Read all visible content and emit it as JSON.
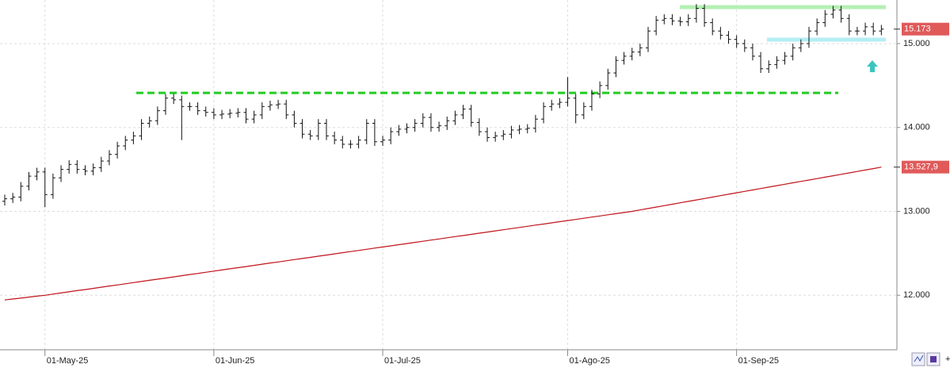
{
  "chart_data": {
    "type": "ohlc",
    "categories": [
      null,
      null,
      null,
      null,
      null,
      "01-May-25",
      null,
      null,
      null,
      null,
      null,
      null,
      null,
      null,
      null,
      null,
      null,
      null,
      null,
      null,
      null,
      null,
      null,
      null,
      null,
      null,
      "01-Jun-25",
      null,
      null,
      null,
      null,
      null,
      null,
      null,
      null,
      null,
      null,
      null,
      null,
      null,
      null,
      null,
      null,
      null,
      null,
      null,
      null,
      "01-Jul-25",
      null,
      null,
      null,
      null,
      null,
      null,
      null,
      null,
      null,
      null,
      null,
      null,
      null,
      null,
      null,
      null,
      null,
      null,
      null,
      null,
      null,
      null,
      "01-Ago-25",
      null,
      null,
      null,
      null,
      null,
      null,
      null,
      null,
      null,
      null,
      null,
      null,
      null,
      null,
      null,
      null,
      null,
      null,
      null,
      null,
      "01-Sep-25",
      null,
      null,
      null,
      null,
      null,
      null,
      null,
      null,
      null,
      null,
      null,
      null,
      null,
      null,
      null,
      null,
      null,
      null
    ],
    "open": [
      13120,
      13150,
      13170,
      13300,
      13420,
      13470,
      13200,
      13400,
      13500,
      13560,
      13500,
      13480,
      13520,
      13600,
      13680,
      13780,
      13850,
      13900,
      14050,
      14080,
      14200,
      14350,
      14330,
      14250,
      14250,
      14200,
      14180,
      14150,
      14160,
      14170,
      14180,
      14100,
      14150,
      14250,
      14270,
      14280,
      14150,
      14050,
      13920,
      13900,
      14050,
      13900,
      13850,
      13800,
      13800,
      13850,
      14050,
      13830,
      13850,
      13950,
      13980,
      14000,
      14050,
      14120,
      14000,
      14020,
      14080,
      14150,
      14220,
      14060,
      13950,
      13880,
      13900,
      13920,
      13970,
      13980,
      13990,
      14100,
      14250,
      14280,
      14300,
      14350,
      14150,
      14250,
      14400,
      14500,
      14650,
      14800,
      14850,
      14900,
      14950,
      15150,
      15280,
      15300,
      15270,
      15260,
      15300,
      15420,
      15250,
      15150,
      15100,
      15050,
      15000,
      14950,
      14850,
      14700,
      14750,
      14800,
      14850,
      14950,
      15000,
      15150,
      15250,
      15350,
      15400,
      15300,
      15150,
      15150,
      15200,
      15150
    ],
    "high": [
      13200,
      13220,
      13350,
      13470,
      13520,
      13520,
      13450,
      13550,
      13610,
      13610,
      13550,
      13570,
      13650,
      13730,
      13830,
      13900,
      13950,
      14100,
      14130,
      14250,
      14400,
      14400,
      14380,
      14300,
      14300,
      14250,
      14230,
      14210,
      14220,
      14230,
      14230,
      14200,
      14300,
      14320,
      14330,
      14330,
      14200,
      14100,
      13970,
      14100,
      14100,
      13950,
      13900,
      13850,
      13900,
      14100,
      14100,
      13900,
      14000,
      14030,
      14050,
      14100,
      14170,
      14170,
      14070,
      14130,
      14200,
      14270,
      14270,
      14110,
      14000,
      13950,
      13970,
      14020,
      14030,
      14040,
      14150,
      14300,
      14330,
      14350,
      14600,
      14400,
      14300,
      14450,
      14550,
      14700,
      14850,
      14900,
      14950,
      15000,
      15200,
      15330,
      15350,
      15350,
      15320,
      15350,
      15470,
      15470,
      15300,
      15200,
      15150,
      15100,
      15050,
      15000,
      14900,
      14800,
      14850,
      14900,
      15000,
      15050,
      15200,
      15300,
      15400,
      15450,
      15450,
      15350,
      15200,
      15250,
      15250,
      15223
    ],
    "low": [
      13070,
      13100,
      13120,
      13250,
      13370,
      13050,
      13150,
      13350,
      13450,
      13450,
      13430,
      13430,
      13470,
      13550,
      13630,
      13730,
      13800,
      13850,
      14000,
      14030,
      14150,
      14280,
      13850,
      14200,
      14150,
      14130,
      14100,
      14100,
      14110,
      14120,
      14050,
      14050,
      14100,
      14200,
      14220,
      14100,
      14000,
      13870,
      13850,
      13850,
      13850,
      13800,
      13750,
      13750,
      13750,
      13800,
      13780,
      13780,
      13800,
      13900,
      13930,
      13950,
      14000,
      13950,
      13950,
      13970,
      14030,
      14100,
      14010,
      13900,
      13830,
      13830,
      13850,
      13870,
      13920,
      13930,
      13940,
      14050,
      14200,
      14230,
      14250,
      14050,
      14100,
      14200,
      14350,
      14450,
      14600,
      14750,
      14800,
      14850,
      14900,
      15100,
      15230,
      15220,
      15210,
      15210,
      15250,
      15200,
      15100,
      15050,
      15000,
      14950,
      14900,
      14800,
      14650,
      14650,
      14700,
      14750,
      14800,
      14900,
      14950,
      15100,
      15200,
      15300,
      15250,
      15100,
      15100,
      15100,
      15100,
      15100
    ],
    "close": [
      13150,
      13170,
      13300,
      13420,
      13470,
      13200,
      13400,
      13500,
      13560,
      13500,
      13480,
      13520,
      13600,
      13680,
      13780,
      13850,
      13900,
      14050,
      14080,
      14200,
      14350,
      14330,
      14250,
      14250,
      14200,
      14180,
      14150,
      14160,
      14170,
      14180,
      14100,
      14150,
      14250,
      14270,
      14280,
      14150,
      14050,
      13920,
      13900,
      14050,
      13900,
      13850,
      13800,
      13800,
      13850,
      14050,
      13830,
      13850,
      13950,
      13980,
      14000,
      14050,
      14120,
      14000,
      14020,
      14080,
      14150,
      14220,
      14060,
      13950,
      13880,
      13900,
      13920,
      13970,
      13980,
      13990,
      14100,
      14250,
      14280,
      14300,
      14350,
      14150,
      14250,
      14400,
      14500,
      14650,
      14800,
      14850,
      14900,
      14950,
      15150,
      15280,
      15300,
      15270,
      15260,
      15300,
      15420,
      15250,
      15150,
      15100,
      15050,
      15000,
      14950,
      14850,
      14700,
      14750,
      14800,
      14850,
      14950,
      15000,
      15150,
      15250,
      15350,
      15400,
      15300,
      15150,
      15150,
      15200,
      15150,
      15173
    ],
    "color": "#111111",
    "moving_average": {
      "color": "#c0141c",
      "values": [
        11944,
        11955,
        11966,
        11978,
        11989,
        12000,
        12014,
        12027,
        12041,
        12055,
        12068,
        12082,
        12096,
        12110,
        12123,
        12137,
        12151,
        12164,
        12178,
        12192,
        12205,
        12219,
        12233,
        12247,
        12260,
        12274,
        12288,
        12301,
        12315,
        12329,
        12342,
        12356,
        12370,
        12384,
        12397,
        12411,
        12425,
        12438,
        12452,
        12466,
        12479,
        12493,
        12507,
        12521,
        12534,
        12548,
        12562,
        12575,
        12589,
        12603,
        12616,
        12630,
        12644,
        12658,
        12671,
        12685,
        12699,
        12712,
        12726,
        12740,
        12753,
        12767,
        12781,
        12795,
        12808,
        12822,
        12836,
        12849,
        12863,
        12877,
        12890,
        12904,
        12918,
        12932,
        12945,
        12959,
        12973,
        12986,
        13000,
        13017,
        13034,
        13051,
        13068,
        13085,
        13102,
        13119,
        13136,
        13153,
        13170,
        13187,
        13204,
        13221,
        13238,
        13255,
        13272,
        13289,
        13306,
        13323,
        13340,
        13357,
        13374,
        13391,
        13408,
        13425,
        13442,
        13459,
        13476,
        13493,
        13510,
        13527.9
      ]
    },
    "levels": [
      {
        "value": 14413,
        "color": "#22cc22",
        "style": "dashed"
      },
      {
        "value": 15435,
        "color": "#b4f0b4",
        "style": "solid"
      },
      {
        "value": 15047,
        "color": "#b4eef4",
        "style": "solid"
      }
    ],
    "price_labels": [
      {
        "value": 15173,
        "label": "15.173",
        "color": "#e05a5a"
      },
      {
        "value": 13527.9,
        "label": "13.527,9",
        "color": "#e05a5a"
      }
    ],
    "ylim": [
      11350,
      15520
    ],
    "yticks": [
      {
        "value": 12000,
        "label": "12.000"
      },
      {
        "value": 13000,
        "label": "13.000"
      },
      {
        "value": 14000,
        "label": "14.000"
      },
      {
        "value": 15000,
        "label": "15.000"
      }
    ],
    "grid": true
  }
}
